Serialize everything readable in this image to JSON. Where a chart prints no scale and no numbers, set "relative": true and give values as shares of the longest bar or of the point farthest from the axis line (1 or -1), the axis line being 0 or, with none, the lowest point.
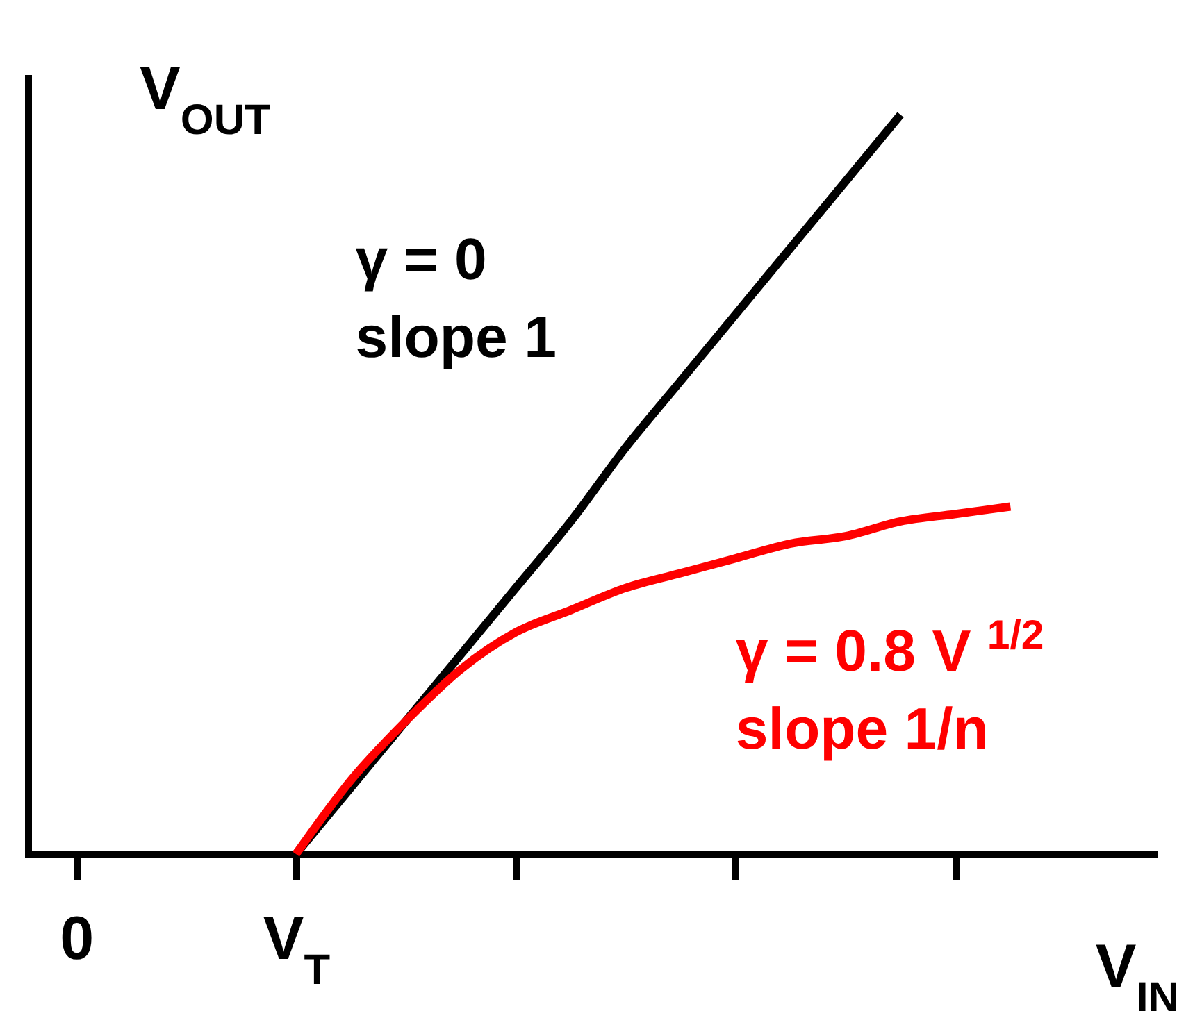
{
  "chart_data": {
    "type": "line",
    "relative": true,
    "xlabel": "V$_{IN}$",
    "ylabel": "V$_{OUT}$",
    "tick_labels": "x",
    "categories": [
      "0",
      null,
      null,
      null,
      "V$_{T}$",
      null,
      null,
      null,
      null,
      null,
      null,
      null,
      null,
      null,
      null,
      null,
      null,
      null,
      null,
      null
    ],
    "series": [
      {
        "name": "γ = 0\nslope 1",
        "color": "#000000",
        "values": [
          null,
          null,
          null,
          null,
          0,
          0.09,
          0.18,
          0.27,
          0.36,
          0.45,
          0.55,
          0.64,
          0.73,
          0.82,
          0.91,
          1,
          null,
          null,
          null,
          null
        ]
      },
      {
        "name": "γ = 0.8 V $^{1/2}$\nslope 1/n",
        "color": "#ff0000",
        "values": [
          null,
          null,
          null,
          null,
          0,
          0.1,
          0.18,
          0.25,
          0.3,
          0.33,
          0.36,
          0.38,
          0.4,
          0.42,
          0.43,
          0.45,
          0.46,
          0.47,
          null,
          null
        ]
      }
    ]
  }
}
